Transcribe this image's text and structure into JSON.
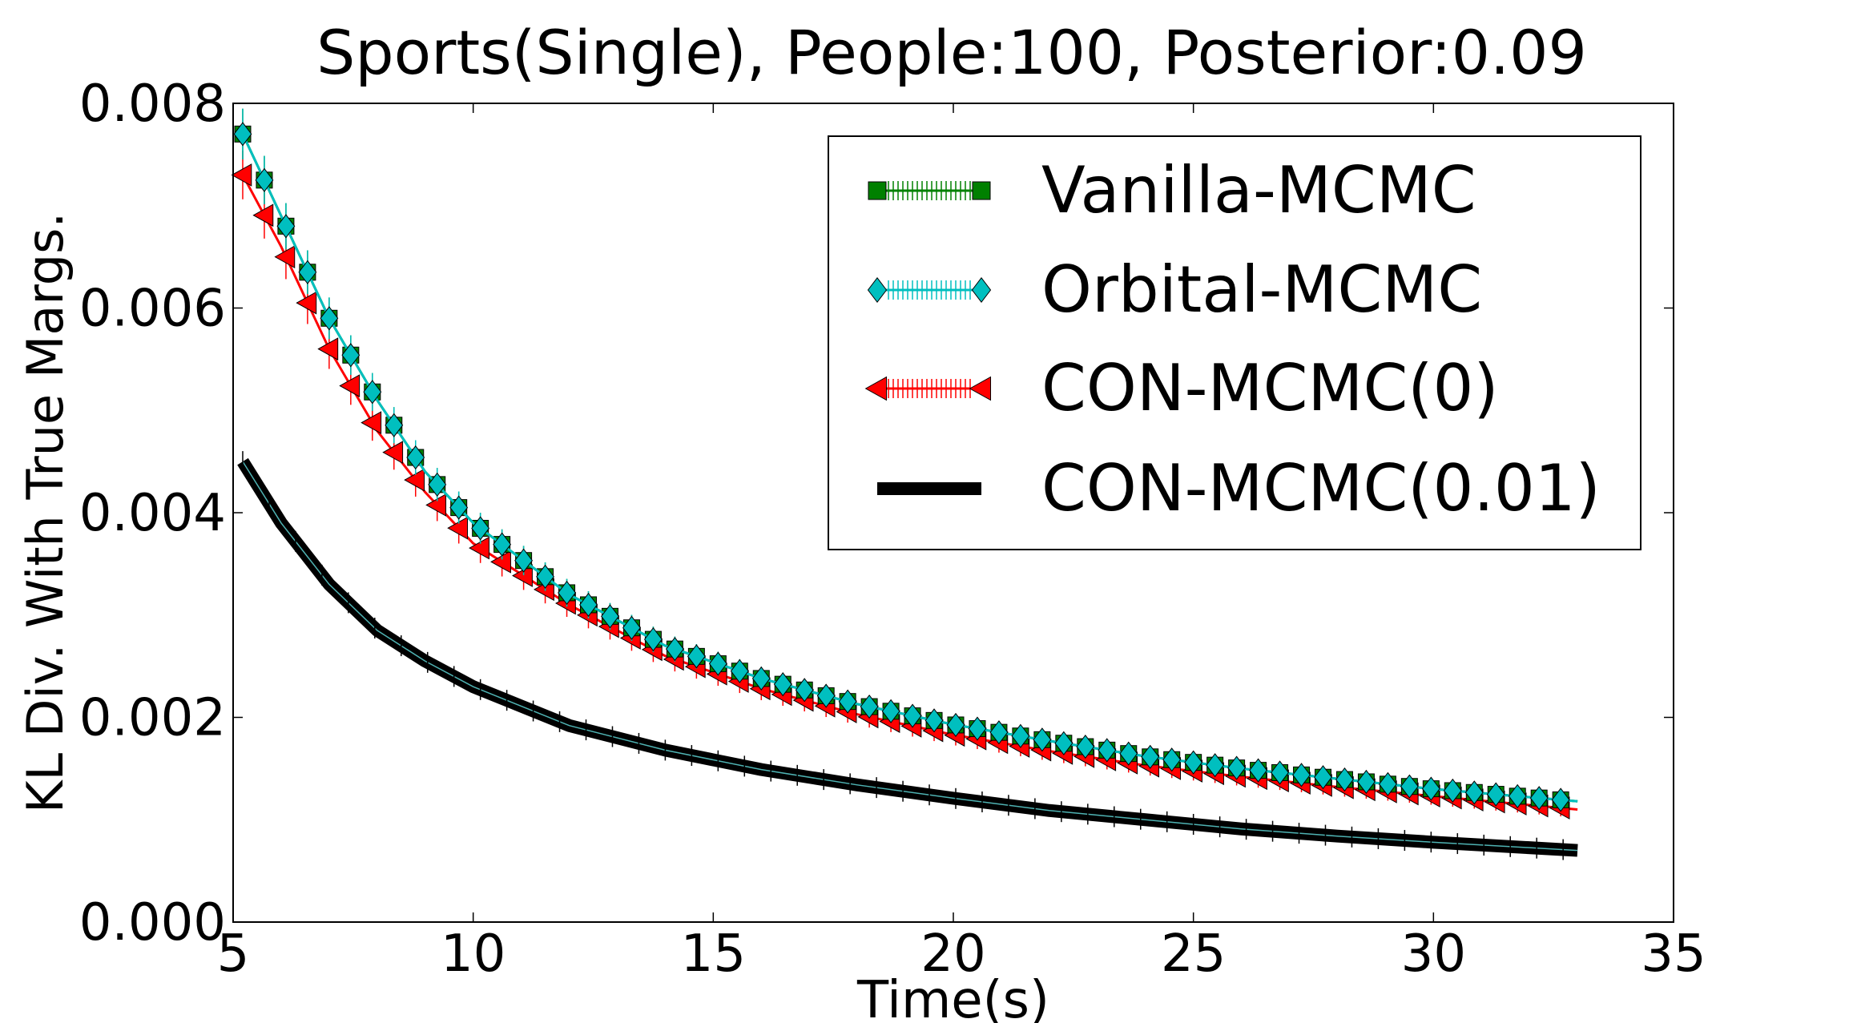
{
  "chart_data": {
    "type": "line",
    "title": "Sports(Single), People:100, Posterior:0.09",
    "xlabel": "Time(s)",
    "ylabel": "KL Div. With True Margs.",
    "xlim": [
      5,
      35
    ],
    "ylim": [
      0.0,
      0.008
    ],
    "xticks": [
      5,
      10,
      15,
      20,
      25,
      30,
      35
    ],
    "xtick_labels": [
      "5",
      "10",
      "15",
      "20",
      "25",
      "30",
      "35"
    ],
    "yticks": [
      0.0,
      0.002,
      0.004,
      0.006,
      0.008
    ],
    "ytick_labels": [
      "0.000",
      "0.002",
      "0.004",
      "0.006",
      "0.008"
    ],
    "grid": false,
    "legend_position": "top-right",
    "series": [
      {
        "name": "Vanilla-MCMC",
        "color": "#008000",
        "marker": "square",
        "x": [
          5.2,
          6,
          7,
          8,
          9,
          10,
          12,
          14,
          16,
          18,
          20,
          22,
          24,
          26,
          28,
          30,
          33
        ],
        "y": [
          0.0077,
          0.0069,
          0.0059,
          0.0051,
          0.0044,
          0.0039,
          0.0032,
          0.0027,
          0.00238,
          0.00213,
          0.00193,
          0.00177,
          0.00162,
          0.0015,
          0.0014,
          0.0013,
          0.00118
        ]
      },
      {
        "name": "Orbital-MCMC",
        "color": "#00bfbf",
        "marker": "diamond",
        "x": [
          5.2,
          6,
          7,
          8,
          9,
          10,
          12,
          14,
          16,
          18,
          20,
          22,
          24,
          26,
          28,
          30,
          33
        ],
        "y": [
          0.0077,
          0.0069,
          0.0059,
          0.0051,
          0.0044,
          0.0039,
          0.0032,
          0.0027,
          0.00238,
          0.00213,
          0.00193,
          0.00177,
          0.00162,
          0.0015,
          0.0014,
          0.0013,
          0.00118
        ]
      },
      {
        "name": "CON-MCMC(0)",
        "color": "#ff0000",
        "marker": "triangle-left",
        "x": [
          5.2,
          6,
          7,
          8,
          9,
          10,
          12,
          14,
          16,
          18,
          20,
          22,
          24,
          26,
          28,
          30,
          33
        ],
        "y": [
          0.0073,
          0.0066,
          0.0056,
          0.0048,
          0.0042,
          0.0037,
          0.0031,
          0.0026,
          0.00228,
          0.00203,
          0.00183,
          0.00167,
          0.00153,
          0.00142,
          0.00132,
          0.00123,
          0.0011
        ]
      },
      {
        "name": "CON-MCMC(0.01)",
        "color": "#000000",
        "marker": "none",
        "x": [
          5.2,
          6,
          7,
          8,
          9,
          10,
          12,
          14,
          16,
          18,
          20,
          22,
          24,
          26,
          28,
          30,
          33
        ],
        "y": [
          0.0045,
          0.0039,
          0.0033,
          0.00285,
          0.00255,
          0.0023,
          0.00192,
          0.00168,
          0.00149,
          0.00134,
          0.00121,
          0.00109,
          0.001,
          0.00091,
          0.00084,
          0.00078,
          0.0007
        ]
      }
    ]
  }
}
